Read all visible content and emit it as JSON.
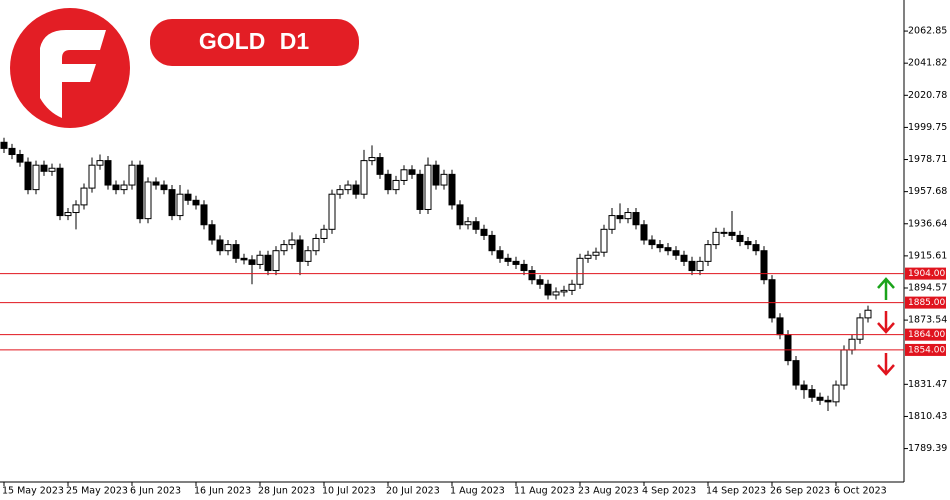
{
  "chart_data": {
    "type": "candlestick",
    "title": "GOLD D1",
    "categories": [
      "15 May 2023",
      null,
      null,
      null,
      null,
      null,
      null,
      null,
      "25 May 2023",
      null,
      null,
      null,
      null,
      null,
      null,
      null,
      "6 Jun 2023",
      null,
      null,
      null,
      null,
      null,
      null,
      null,
      "16 Jun 2023",
      null,
      null,
      null,
      null,
      null,
      null,
      null,
      "28 Jun 2023",
      null,
      null,
      null,
      null,
      null,
      null,
      null,
      "10 Jul 2023",
      null,
      null,
      null,
      null,
      null,
      null,
      null,
      "20 Jul 2023",
      null,
      null,
      null,
      null,
      null,
      null,
      null,
      "1 Aug 2023",
      null,
      null,
      null,
      null,
      null,
      null,
      null,
      "11 Aug 2023",
      null,
      null,
      null,
      null,
      null,
      null,
      null,
      "23 Aug 2023",
      null,
      null,
      null,
      null,
      null,
      null,
      null,
      "4 Sep 2023",
      null,
      null,
      null,
      null,
      null,
      null,
      null,
      "14 Sep 2023",
      null,
      null,
      null,
      null,
      null,
      null,
      null,
      "26 Sep 2023",
      null,
      null,
      null,
      null,
      null,
      null,
      null,
      "6 Oct 2023",
      null,
      null,
      null,
      null
    ],
    "open": [
      1990,
      1986,
      1982,
      1977,
      1959,
      1975,
      1971,
      1973,
      1942,
      1944,
      1949,
      1960,
      1975,
      1978,
      1962,
      1959,
      1962,
      1975,
      1940,
      1964,
      1962,
      1959,
      1942,
      1956,
      1952,
      1949,
      1936,
      1926,
      1919,
      1923,
      1914,
      1913,
      1910,
      1916,
      1906,
      1919,
      1923,
      1926,
      1912,
      1919,
      1927,
      1933,
      1956,
      1959,
      1962,
      1956,
      1978,
      1980,
      1969,
      1959,
      1965,
      1972,
      1969,
      1946,
      1975,
      1962,
      1969,
      1949,
      1936,
      1938,
      1933,
      1929,
      1919,
      1914,
      1912,
      1910,
      1906,
      1900,
      1897,
      1890,
      1892,
      1893,
      1897,
      1914,
      1916,
      1918,
      1933,
      1942,
      1940,
      1944,
      1936,
      1926,
      1923,
      1921,
      1919,
      1916,
      1912,
      1906,
      1912,
      1923,
      1931,
      1931,
      1929,
      1925,
      1923,
      1919,
      1900,
      1875,
      1864,
      1847,
      1831,
      1828,
      1823,
      1821,
      1820,
      1831,
      1854,
      1861,
      1875
    ],
    "high": [
      1993,
      1989,
      1985,
      1980,
      1978,
      1978,
      1976,
      1976,
      1947,
      1952,
      1963,
      1980,
      1982,
      1981,
      1965,
      1965,
      1978,
      1978,
      1967,
      1967,
      1965,
      1962,
      1962,
      1959,
      1955,
      1952,
      1939,
      1929,
      1926,
      1926,
      1917,
      1916,
      1919,
      1919,
      1922,
      1926,
      1931,
      1929,
      1922,
      1930,
      1936,
      1959,
      1962,
      1965,
      1965,
      1985,
      1988,
      1983,
      1972,
      1968,
      1975,
      1975,
      1972,
      1980,
      1978,
      1972,
      1972,
      1952,
      1941,
      1941,
      1936,
      1932,
      1922,
      1917,
      1915,
      1913,
      1909,
      1903,
      1900,
      1895,
      1896,
      1900,
      1917,
      1919,
      1921,
      1936,
      1947,
      1950,
      1947,
      1947,
      1939,
      1929,
      1926,
      1924,
      1922,
      1919,
      1915,
      1915,
      1926,
      1934,
      1934,
      1945,
      1932,
      1928,
      1926,
      1922,
      1903,
      1878,
      1867,
      1850,
      1834,
      1831,
      1826,
      1824,
      1834,
      1857,
      1864,
      1878,
      1883
    ],
    "low": [
      1983,
      1979,
      1974,
      1956,
      1956,
      1968,
      1968,
      1939,
      1939,
      1933,
      1946,
      1957,
      1972,
      1959,
      1956,
      1956,
      1959,
      1937,
      1937,
      1959,
      1956,
      1939,
      1939,
      1949,
      1946,
      1933,
      1923,
      1916,
      1916,
      1911,
      1910,
      1897,
      1907,
      1903,
      1903,
      1916,
      1920,
      1903,
      1909,
      1916,
      1924,
      1930,
      1953,
      1956,
      1953,
      1953,
      1975,
      1966,
      1956,
      1956,
      1962,
      1966,
      1943,
      1943,
      1959,
      1959,
      1946,
      1933,
      1933,
      1930,
      1926,
      1916,
      1911,
      1909,
      1907,
      1903,
      1897,
      1894,
      1887,
      1887,
      1889,
      1890,
      1894,
      1911,
      1913,
      1915,
      1930,
      1937,
      1937,
      1933,
      1923,
      1920,
      1918,
      1916,
      1913,
      1909,
      1903,
      1903,
      1909,
      1920,
      1928,
      1926,
      1922,
      1920,
      1916,
      1897,
      1872,
      1861,
      1844,
      1828,
      1822,
      1820,
      1818,
      1814,
      1817,
      1828,
      1851,
      1858,
      1872
    ],
    "close": [
      1986,
      1982,
      1977,
      1959,
      1975,
      1971,
      1973,
      1942,
      1944,
      1949,
      1960,
      1975,
      1978,
      1962,
      1959,
      1962,
      1975,
      1940,
      1964,
      1962,
      1959,
      1942,
      1956,
      1952,
      1949,
      1936,
      1926,
      1919,
      1923,
      1914,
      1913,
      1910,
      1916,
      1906,
      1919,
      1923,
      1926,
      1912,
      1919,
      1927,
      1933,
      1956,
      1959,
      1962,
      1956,
      1978,
      1980,
      1969,
      1959,
      1965,
      1972,
      1969,
      1946,
      1975,
      1962,
      1969,
      1949,
      1936,
      1938,
      1933,
      1929,
      1919,
      1914,
      1912,
      1910,
      1906,
      1900,
      1897,
      1890,
      1892,
      1893,
      1897,
      1914,
      1916,
      1918,
      1933,
      1942,
      1940,
      1944,
      1936,
      1926,
      1923,
      1921,
      1919,
      1916,
      1912,
      1906,
      1912,
      1923,
      1931,
      1931,
      1929,
      1925,
      1923,
      1919,
      1900,
      1875,
      1864,
      1847,
      1831,
      1828,
      1823,
      1821,
      1820,
      1831,
      1854,
      1861,
      1875,
      1880
    ],
    "up_color": "#ffffff",
    "down_color": "#000000",
    "ylim": [
      1767.5,
      2083.2
    ],
    "yticks": [
      2062.85,
      2041.82,
      2020.78,
      1999.75,
      1978.71,
      1957.68,
      1936.64,
      1915.61,
      1894.57,
      1873.54,
      1831.47,
      1810.43,
      1789.39
    ],
    "levels": [
      {
        "value": 1904,
        "label": "1904.00"
      },
      {
        "value": 1885,
        "label": "1885.00"
      },
      {
        "value": 1864,
        "label": "1864.00"
      },
      {
        "value": 1854,
        "label": "1854.00"
      }
    ],
    "level_color": "#e0141e"
  }
}
